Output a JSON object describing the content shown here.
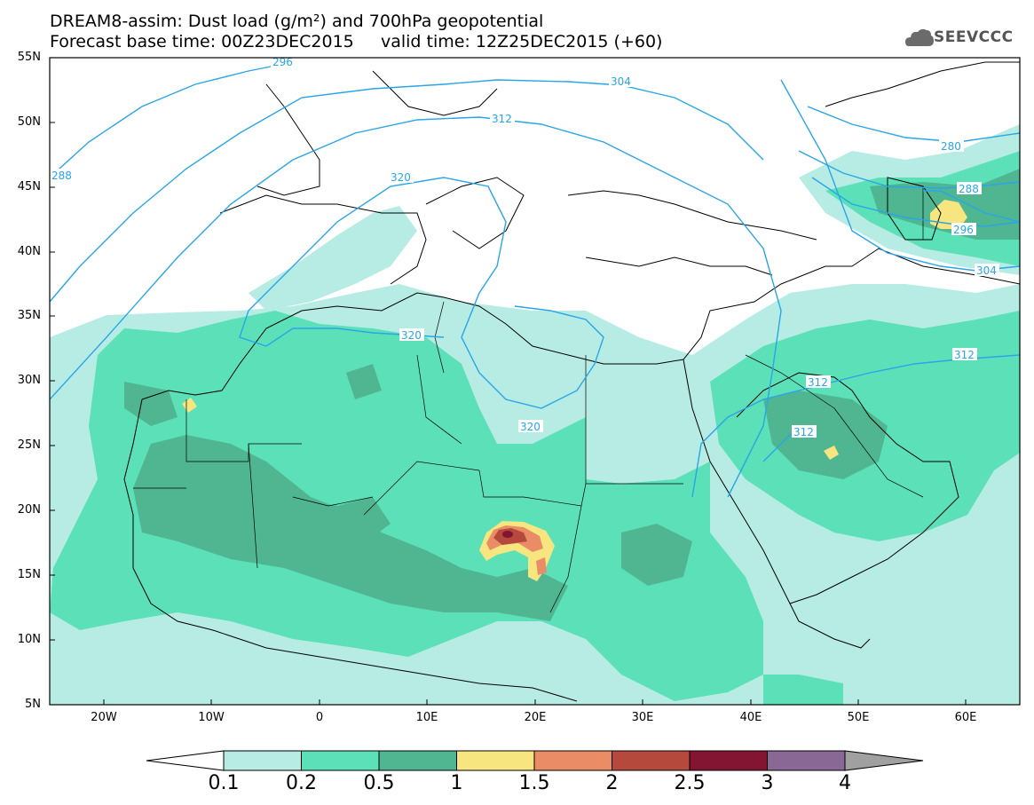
{
  "title": {
    "line1": "DREAM8-assim: Dust load (g/m²) and 700hPa geopotential",
    "line2": "Forecast base time: 00Z23DEC2015     valid time: 12Z25DEC2015 (+60)"
  },
  "logo": {
    "text": "SEEVCCC",
    "icon": "cloud-icon"
  },
  "map": {
    "lon_range": [
      -25,
      65
    ],
    "lat_range": [
      5,
      55
    ],
    "lat_ticks": [
      "55N",
      "50N",
      "45N",
      "40N",
      "35N",
      "30N",
      "25N",
      "20N",
      "15N",
      "10N",
      "5N"
    ],
    "lon_ticks": [
      "20W",
      "10W",
      "0",
      "10E",
      "20E",
      "30E",
      "40E",
      "50E",
      "60E"
    ],
    "contour_labels": [
      "296",
      "304",
      "312",
      "320",
      "320",
      "288",
      "280",
      "288",
      "296",
      "304",
      "312",
      "312",
      "312",
      "320"
    ],
    "colors": {
      "lightest": "#b6ece3",
      "light": "#5ce0b8",
      "medium": "#4fb691",
      "yellow": "#f7e67f",
      "orange": "#ea8c65",
      "red": "#b54a3c",
      "darkred": "#831532",
      "purple": "#8a6896",
      "contour": "#2aa5e8"
    }
  },
  "colorbar": {
    "labels": [
      "0.1",
      "0.2",
      "0.5",
      "1",
      "1.5",
      "2",
      "2.5",
      "3",
      "4"
    ],
    "colors": [
      "#b6ece3",
      "#5ce0b8",
      "#4fb691",
      "#f7e67f",
      "#ea8c65",
      "#b54a3c",
      "#831532",
      "#8a6896"
    ],
    "over_color": "#a0a0a0",
    "under_color": "#ffffff"
  }
}
